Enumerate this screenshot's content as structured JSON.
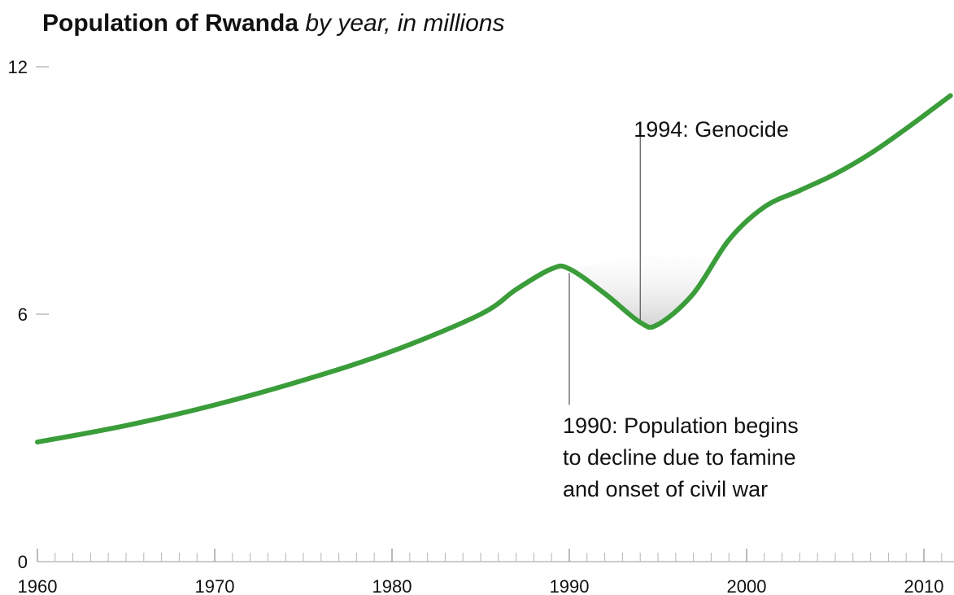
{
  "chart_data": {
    "type": "line",
    "title": "Population of Rwanda",
    "subtitle": "by year, in millions",
    "xlabel": "",
    "ylabel": "",
    "xlim": [
      1960,
      2011.5
    ],
    "ylim": [
      0,
      12
    ],
    "yticks": [
      0,
      6,
      12
    ],
    "xtick_labels": [
      1960,
      1970,
      1980,
      1990,
      2000,
      2010
    ],
    "grid": false,
    "series": [
      {
        "color": "#3a9d3a",
        "x": [
          1960,
          1965,
          1970,
          1975,
          1980,
          1985,
          1987,
          1989,
          1990,
          1992,
          1994,
          1995,
          1997,
          1999,
          2001,
          2003,
          2005,
          2007,
          2009,
          2011.5
        ],
        "y": [
          2.9,
          3.3,
          3.8,
          4.4,
          5.1,
          6.0,
          6.6,
          7.1,
          7.1,
          6.5,
          5.8,
          5.75,
          6.5,
          7.8,
          8.6,
          9.0,
          9.4,
          9.9,
          10.5,
          11.3
        ]
      }
    ],
    "annotations": [
      {
        "x": 1994,
        "y_top": 10.6,
        "y_bottom": 5.8,
        "lines": [
          "1994: Genocide"
        ]
      },
      {
        "x": 1990,
        "y_top": 7.0,
        "y_bottom": 3.8,
        "lines": [
          "1990: Population begins",
          "to decline due to famine",
          "and onset of civil war"
        ]
      }
    ]
  }
}
